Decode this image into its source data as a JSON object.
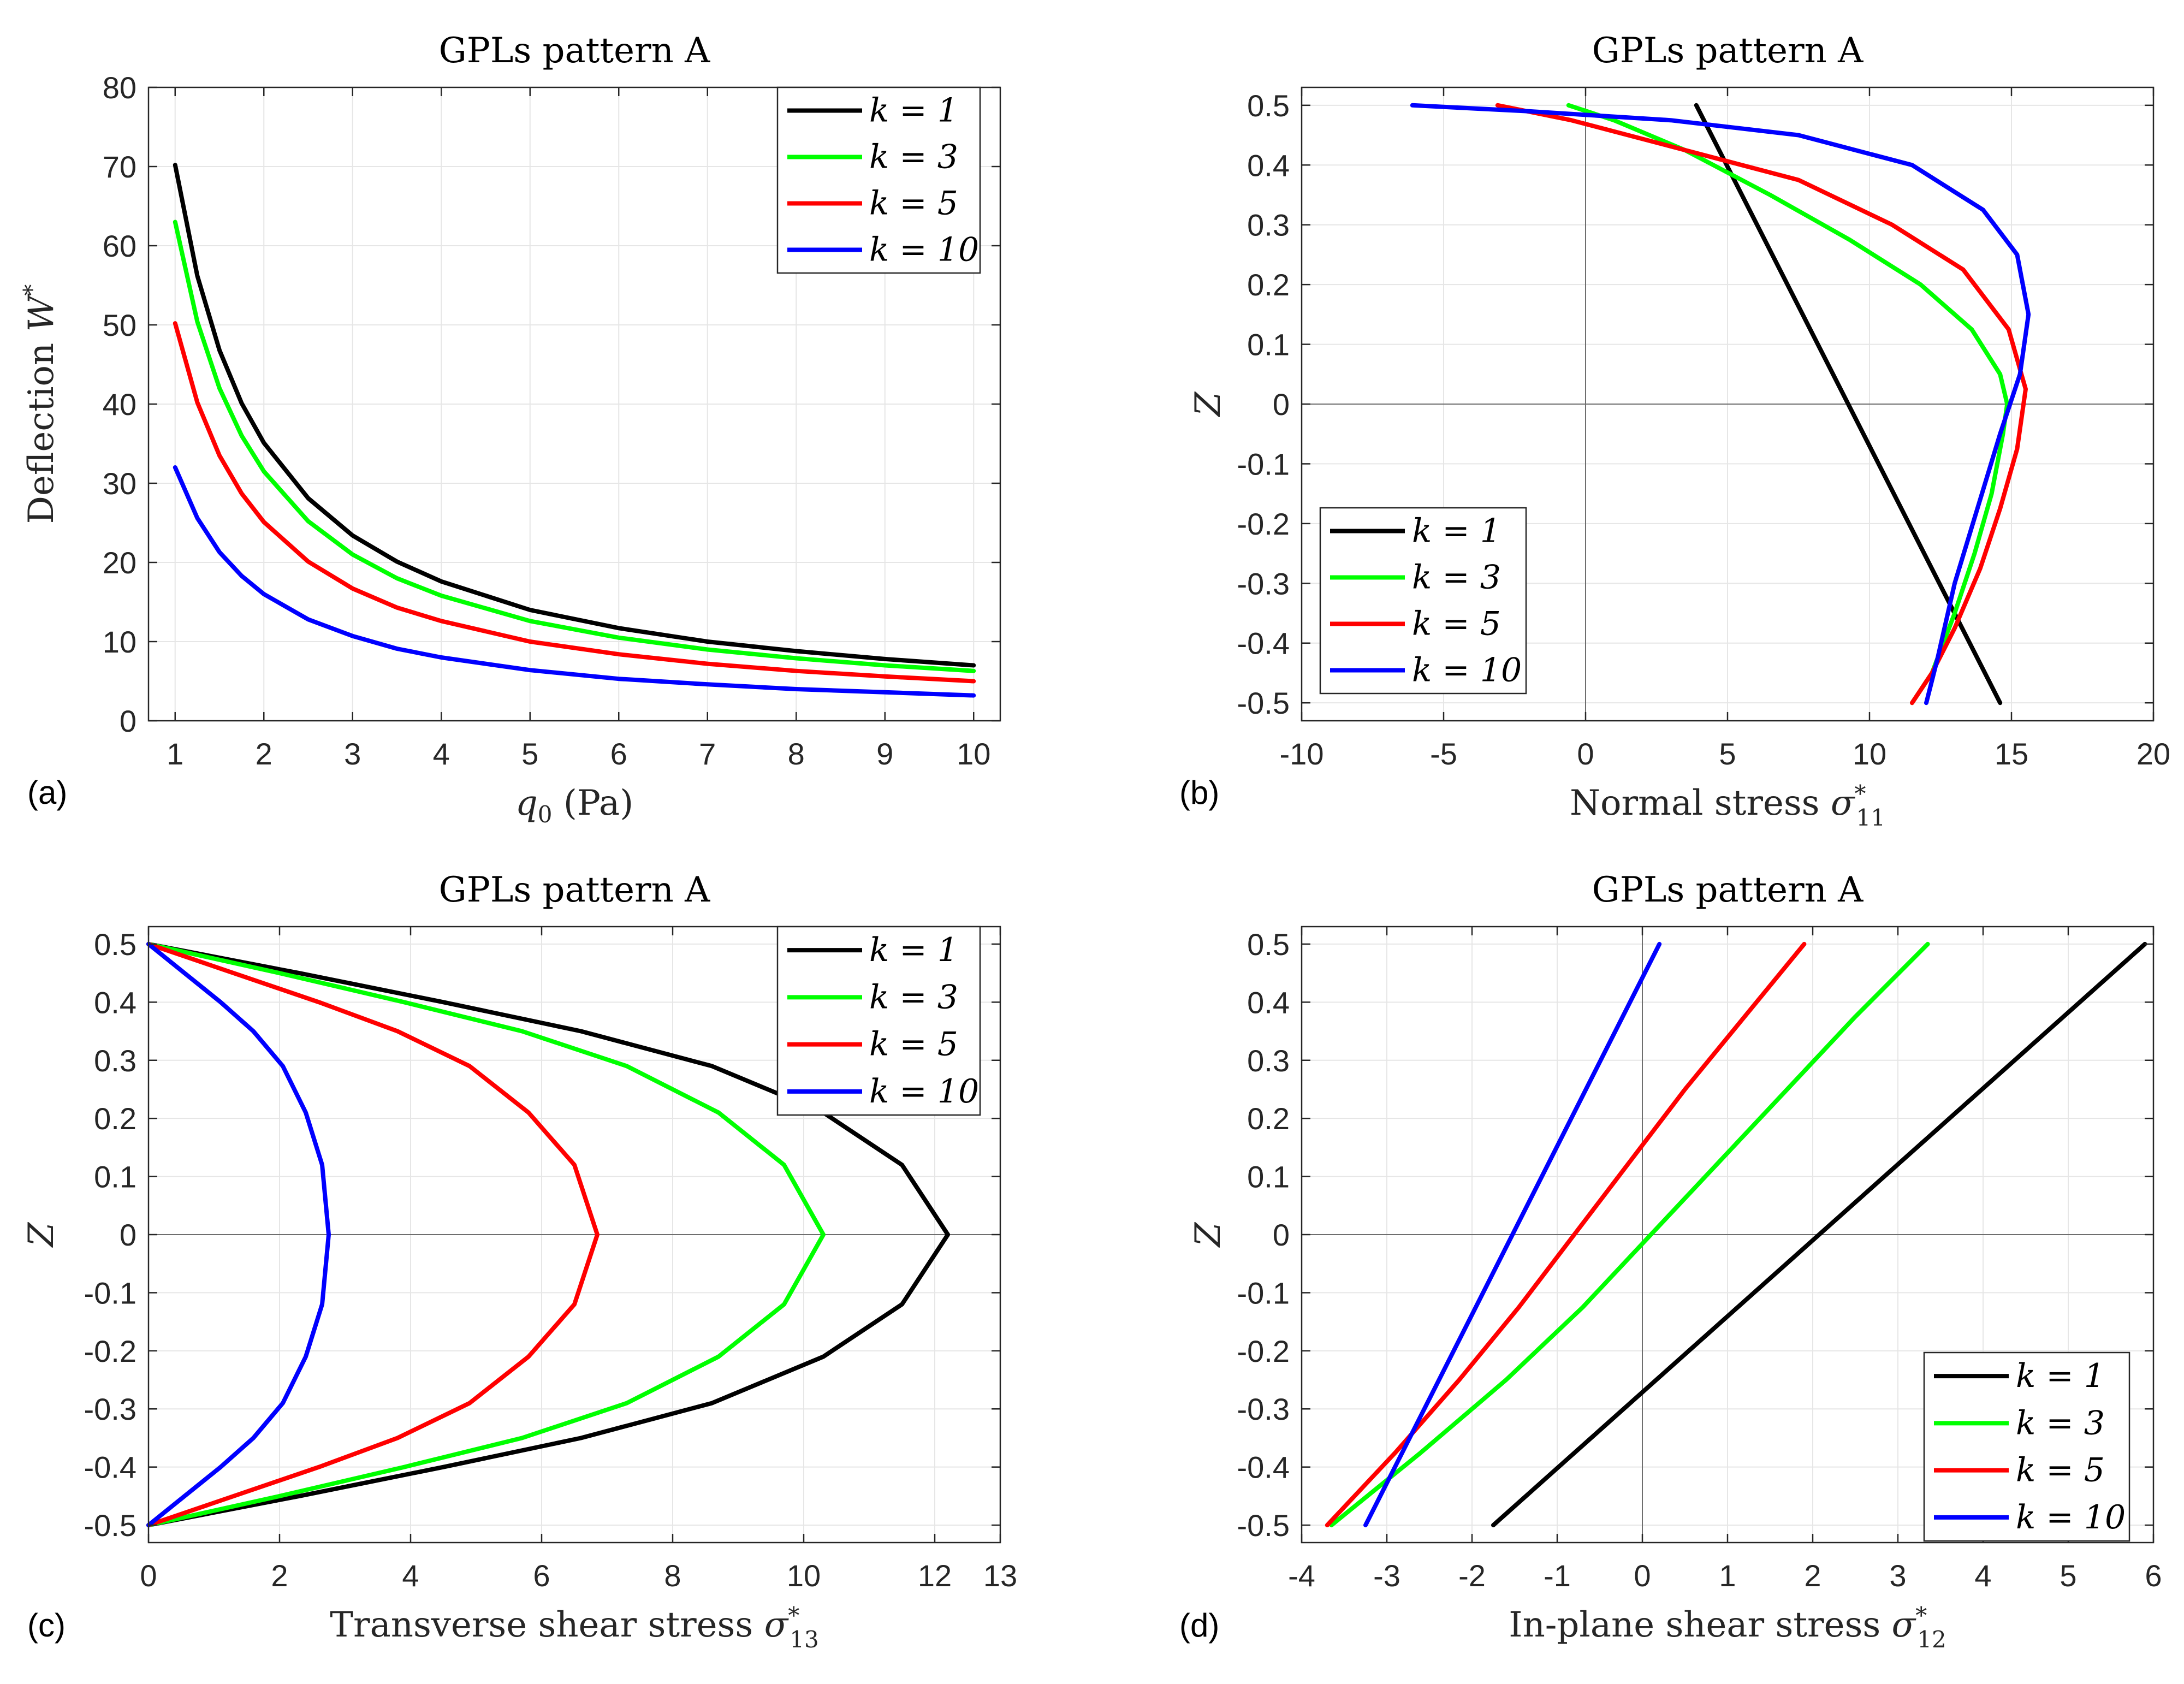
{
  "colors": {
    "k1": "#000000",
    "k3": "#00ff00",
    "k5": "#ff0000",
    "k10": "#0000ff"
  },
  "chart_data": [
    {
      "panel": "(a)",
      "type": "line",
      "title": "GPLs pattern A",
      "xlabel": "q0 (Pa)",
      "ylabel": "Deflection W*",
      "xlim": [
        0.7,
        10.3
      ],
      "ylim": [
        0,
        80
      ],
      "xticks": [
        1,
        2,
        3,
        4,
        5,
        6,
        7,
        8,
        9,
        10
      ],
      "yticks": [
        0,
        10,
        20,
        30,
        40,
        50,
        60,
        70,
        80
      ],
      "zero_lines": [],
      "legend_position": "top-right",
      "series": [
        {
          "name": "k = 1",
          "color": "#000000",
          "x": [
            1,
            1.25,
            1.5,
            1.75,
            2,
            2.5,
            3,
            3.5,
            4,
            5,
            6,
            7,
            8,
            9,
            10
          ],
          "y": [
            70.2,
            56.2,
            46.8,
            40.1,
            35.1,
            28.1,
            23.4,
            20.1,
            17.6,
            14.0,
            11.7,
            10.0,
            8.8,
            7.8,
            7.0
          ]
        },
        {
          "name": "k = 3",
          "color": "#00ff00",
          "x": [
            1,
            1.25,
            1.5,
            1.75,
            2,
            2.5,
            3,
            3.5,
            4,
            5,
            6,
            7,
            8,
            9,
            10
          ],
          "y": [
            63.0,
            50.4,
            42.0,
            36.0,
            31.5,
            25.2,
            21.0,
            18.0,
            15.8,
            12.6,
            10.5,
            9.0,
            7.9,
            7.0,
            6.3
          ]
        },
        {
          "name": "k = 5",
          "color": "#ff0000",
          "x": [
            1,
            1.25,
            1.5,
            1.75,
            2,
            2.5,
            3,
            3.5,
            4,
            5,
            6,
            7,
            8,
            9,
            10
          ],
          "y": [
            50.2,
            40.2,
            33.5,
            28.7,
            25.1,
            20.1,
            16.7,
            14.3,
            12.6,
            10.0,
            8.4,
            7.2,
            6.3,
            5.6,
            5.0
          ]
        },
        {
          "name": "k = 10",
          "color": "#0000ff",
          "x": [
            1,
            1.25,
            1.5,
            1.75,
            2,
            2.5,
            3,
            3.5,
            4,
            5,
            6,
            7,
            8,
            9,
            10
          ],
          "y": [
            32.0,
            25.6,
            21.3,
            18.3,
            16.0,
            12.8,
            10.7,
            9.1,
            8.0,
            6.4,
            5.3,
            4.6,
            4.0,
            3.6,
            3.2
          ]
        }
      ]
    },
    {
      "panel": "(b)",
      "type": "line",
      "title": "GPLs pattern A",
      "xlabel": "Normal stress σ*11",
      "ylabel": "Z",
      "xlim": [
        -10,
        20
      ],
      "ylim": [
        -0.53,
        0.53
      ],
      "xticks": [
        -10,
        -5,
        0,
        5,
        10,
        15,
        20
      ],
      "yticks": [
        -0.5,
        -0.4,
        -0.3,
        -0.2,
        -0.1,
        0,
        0.1,
        0.2,
        0.3,
        0.4,
        0.5
      ],
      "zero_lines": [
        "x",
        "y"
      ],
      "legend_position": "bottom-left",
      "series": [
        {
          "name": "k = 1",
          "color": "#000000",
          "x": [
            3.9,
            14.6
          ],
          "y": [
            0.5,
            -0.5
          ]
        },
        {
          "name": "k = 3",
          "color": "#00ff00",
          "x": [
            -0.6,
            1.0,
            3.5,
            6.5,
            9.3,
            11.8,
            13.6,
            14.6,
            14.85,
            14.7,
            14.3,
            13.7,
            13.0,
            12.2,
            11.5
          ],
          "y": [
            0.5,
            0.475,
            0.425,
            0.35,
            0.275,
            0.2,
            0.125,
            0.05,
            0,
            -0.05,
            -0.15,
            -0.25,
            -0.35,
            -0.45,
            -0.5
          ]
        },
        {
          "name": "k = 5",
          "color": "#ff0000",
          "x": [
            -3.1,
            -0.5,
            3.5,
            7.5,
            10.8,
            13.3,
            14.9,
            15.5,
            15.2,
            14.6,
            13.9,
            13.0,
            12.2,
            11.5
          ],
          "y": [
            0.5,
            0.475,
            0.425,
            0.375,
            0.3,
            0.225,
            0.125,
            0.025,
            -0.075,
            -0.175,
            -0.275,
            -0.375,
            -0.45,
            -0.5
          ]
        },
        {
          "name": "k = 10",
          "color": "#0000ff",
          "x": [
            -6.1,
            -2.0,
            3.0,
            7.5,
            11.5,
            14.0,
            15.2,
            15.6,
            15.3,
            14.6,
            13.8,
            13.0,
            12.4,
            12.0
          ],
          "y": [
            0.5,
            0.49,
            0.475,
            0.45,
            0.4,
            0.325,
            0.25,
            0.15,
            0.05,
            -0.05,
            -0.175,
            -0.3,
            -0.425,
            -0.5
          ]
        }
      ]
    },
    {
      "panel": "(c)",
      "type": "line",
      "title": "GPLs pattern A",
      "xlabel": "Transverse shear stress σ*13",
      "ylabel": "Z",
      "xlim": [
        0,
        13
      ],
      "ylim": [
        -0.53,
        0.53
      ],
      "xticks": [
        0,
        2,
        4,
        6,
        8,
        10,
        12,
        13
      ],
      "yticks": [
        -0.5,
        -0.4,
        -0.3,
        -0.2,
        -0.1,
        0,
        0.1,
        0.2,
        0.3,
        0.4,
        0.5
      ],
      "zero_lines": [
        "y"
      ],
      "legend_position": "top-right",
      "series": [
        {
          "name": "k = 1",
          "color": "#000000",
          "x": [
            0,
            2.3,
            4.5,
            6.6,
            8.6,
            10.3,
            11.5,
            12.2,
            11.5,
            10.3,
            8.6,
            6.6,
            4.5,
            2.3,
            0
          ],
          "y": [
            0.5,
            0.45,
            0.4,
            0.35,
            0.29,
            0.21,
            0.12,
            0,
            -0.12,
            -0.21,
            -0.29,
            -0.35,
            -0.4,
            -0.45,
            -0.5
          ]
        },
        {
          "name": "k = 3",
          "color": "#00ff00",
          "x": [
            0,
            2.0,
            3.9,
            5.7,
            7.3,
            8.7,
            9.7,
            10.3,
            9.7,
            8.7,
            7.3,
            5.7,
            3.9,
            2.0,
            0
          ],
          "y": [
            0.5,
            0.45,
            0.4,
            0.35,
            0.29,
            0.21,
            0.12,
            0,
            -0.12,
            -0.21,
            -0.29,
            -0.35,
            -0.4,
            -0.45,
            -0.5
          ]
        },
        {
          "name": "k = 5",
          "color": "#ff0000",
          "x": [
            0,
            1.3,
            2.6,
            3.8,
            4.9,
            5.8,
            6.5,
            6.85,
            6.5,
            5.8,
            4.9,
            3.8,
            2.6,
            1.3,
            0
          ],
          "y": [
            0.5,
            0.45,
            0.4,
            0.35,
            0.29,
            0.21,
            0.12,
            0,
            -0.12,
            -0.21,
            -0.29,
            -0.35,
            -0.4,
            -0.45,
            -0.5
          ]
        },
        {
          "name": "k = 10",
          "color": "#0000ff",
          "x": [
            0,
            0.55,
            1.1,
            1.6,
            2.05,
            2.4,
            2.65,
            2.75,
            2.65,
            2.4,
            2.05,
            1.6,
            1.1,
            0.55,
            0
          ],
          "y": [
            0.5,
            0.45,
            0.4,
            0.35,
            0.29,
            0.21,
            0.12,
            0,
            -0.12,
            -0.21,
            -0.29,
            -0.35,
            -0.4,
            -0.45,
            -0.5
          ]
        }
      ]
    },
    {
      "panel": "(d)",
      "type": "line",
      "title": "GPLs pattern A",
      "xlabel": "In-plane shear stress σ*12",
      "ylabel": "Z",
      "xlim": [
        -4,
        6
      ],
      "ylim": [
        -0.53,
        0.53
      ],
      "xticks": [
        -4,
        -3,
        -2,
        -1,
        0,
        1,
        2,
        3,
        4,
        5,
        6
      ],
      "yticks": [
        -0.5,
        -0.4,
        -0.3,
        -0.2,
        -0.1,
        0,
        0.1,
        0.2,
        0.3,
        0.4,
        0.5
      ],
      "zero_lines": [
        "x",
        "y"
      ],
      "legend_position": "bottom-right",
      "series": [
        {
          "name": "k = 1",
          "color": "#000000",
          "x": [
            -1.75,
            5.9
          ],
          "y": [
            -0.5,
            0.5
          ]
        },
        {
          "name": "k = 3",
          "color": "#00ff00",
          "x": [
            -3.65,
            -2.6,
            -1.6,
            -0.7,
            0.1,
            0.9,
            1.7,
            2.5,
            3.35
          ],
          "y": [
            -0.5,
            -0.375,
            -0.25,
            -0.125,
            0,
            0.125,
            0.25,
            0.375,
            0.5
          ]
        },
        {
          "name": "k = 5",
          "color": "#ff0000",
          "x": [
            -3.7,
            -2.9,
            -2.15,
            -1.45,
            -0.8,
            -0.15,
            0.5,
            1.2,
            1.9
          ],
          "y": [
            -0.5,
            -0.375,
            -0.25,
            -0.125,
            0,
            0.125,
            0.25,
            0.375,
            0.5
          ]
        },
        {
          "name": "k = 10",
          "color": "#0000ff",
          "x": [
            -3.25,
            0.2
          ],
          "y": [
            -0.5,
            0.5
          ]
        }
      ]
    }
  ]
}
